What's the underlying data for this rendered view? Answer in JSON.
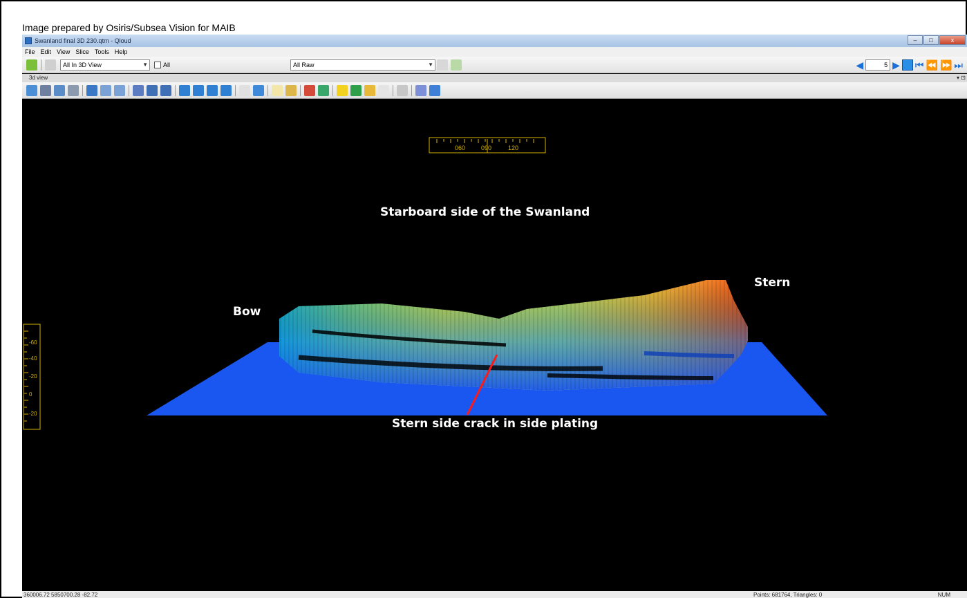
{
  "caption": "Image prepared by Osiris/Subsea Vision for MAIB",
  "window": {
    "title": "Swanland final 3D 230.qtm - Qloud",
    "buttons": {
      "minimize": "–",
      "maximize": "□",
      "close": "x"
    }
  },
  "menu": [
    "File",
    "Edit",
    "View",
    "Slice",
    "Tools",
    "Help"
  ],
  "toolbar": {
    "view_select": "All In 3D View",
    "all_checkbox_label": "All",
    "raw_select": "All Raw",
    "frame_value": "5"
  },
  "panel": {
    "title": "3d view"
  },
  "compass": {
    "ticks": [
      "060",
      "090",
      "120"
    ]
  },
  "depth_scale": {
    "ticks": [
      "-60",
      "-40",
      "-20",
      "0",
      "-20"
    ]
  },
  "annotations": {
    "title": "Starboard side of the Swanland",
    "bow": "Bow",
    "stern": "Stern",
    "crack": "Stern side crack in side plating"
  },
  "status": {
    "coords": "360006.72 5850700.28 -82.72",
    "points": "Points: 681764, Triangles: 0",
    "num": "NUM"
  },
  "colors": {
    "seabed": "#1a57f0",
    "crack_line": "#ff1a1a",
    "scale": "#d6b400"
  }
}
